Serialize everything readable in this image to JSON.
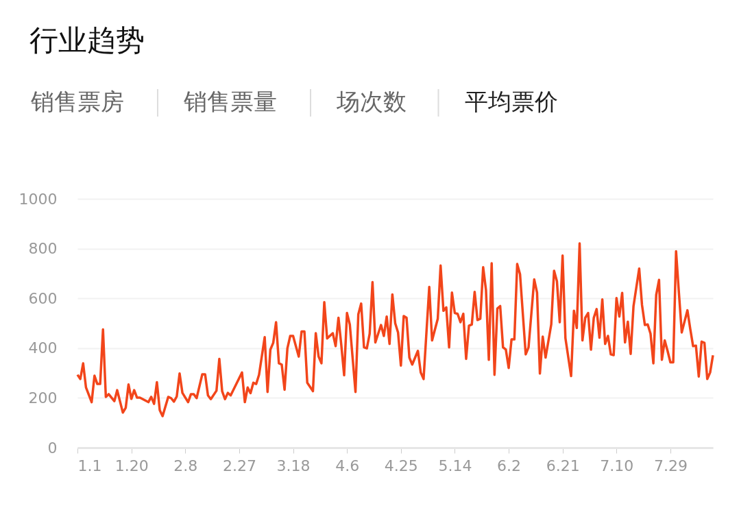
{
  "chart_data": {
    "type": "line",
    "title": "行业趋势",
    "annotations": [
      "销售票房",
      "销售票量",
      "场次数",
      "平均票价"
    ],
    "x": [
      "--01-01",
      "--01-02",
      "--01-03",
      "--01-04",
      "--01-06",
      "--01-07",
      "--01-08",
      "--01-09",
      "--01-10",
      "--01-11",
      "--01-12",
      "--01-14",
      "--01-15",
      "--01-17",
      "--01-18",
      "--01-19",
      "--01-20",
      "--01-21",
      "--01-22",
      "--01-23",
      "--01-26",
      "--01-27",
      "--01-28",
      "--01-29",
      "--01-30",
      "--01-31",
      "--02-02",
      "--02-03",
      "--02-04",
      "--02-05",
      "--02-06",
      "--02-07",
      "--02-09",
      "--02-10",
      "--02-11",
      "--02-12",
      "--02-14",
      "--02-15",
      "--02-16",
      "--02-17",
      "--02-19",
      "--02-20",
      "--02-21",
      "--02-22",
      "--02-23",
      "--02-24",
      "--02-26",
      "--02-28",
      "--03-01",
      "--03-02",
      "--03-03",
      "--03-04",
      "--03-05",
      "--03-06",
      "--03-08",
      "--03-09",
      "--03-10",
      "--03-11",
      "--03-12",
      "--03-13",
      "--03-14",
      "--03-15",
      "--03-16",
      "--03-17",
      "--03-18",
      "--03-20",
      "--03-21",
      "--03-22",
      "--03-23",
      "--03-25",
      "--03-26",
      "--03-27",
      "--03-28",
      "--03-29",
      "--03-30",
      "--04-01",
      "--04-02",
      "--04-03",
      "--04-04",
      "--04-05",
      "--04-06",
      "--04-07",
      "--04-09",
      "--04-10",
      "--04-11",
      "--04-12",
      "--04-13",
      "--04-14",
      "--04-15",
      "--04-16",
      "--04-18",
      "--04-19",
      "--04-20",
      "--04-21",
      "--04-22",
      "--04-23",
      "--04-24",
      "--04-25",
      "--04-26",
      "--04-27",
      "--04-28",
      "--04-29",
      "--05-01",
      "--05-02",
      "--05-03",
      "--05-05",
      "--05-06",
      "--05-08",
      "--05-09",
      "--05-10",
      "--05-11",
      "--05-12",
      "--05-13",
      "--05-14",
      "--05-15",
      "--05-16",
      "--05-17",
      "--05-18",
      "--05-19",
      "--05-20",
      "--05-21",
      "--05-22",
      "--05-23",
      "--05-24",
      "--05-25",
      "--05-26",
      "--05-27",
      "--05-28",
      "--05-29",
      "--05-30",
      "--05-31",
      "--06-01",
      "--06-02",
      "--06-03",
      "--06-04",
      "--06-05",
      "--06-06",
      "--06-08",
      "--06-09",
      "--06-11",
      "--06-12",
      "--06-13",
      "--06-14",
      "--06-15",
      "--06-17",
      "--06-18",
      "--06-19",
      "--06-20",
      "--06-21",
      "--06-22",
      "--06-24",
      "--06-25",
      "--06-26",
      "--06-27",
      "--06-28",
      "--06-29",
      "--06-30",
      "--07-01",
      "--07-02",
      "--07-03",
      "--07-04",
      "--07-05",
      "--07-06",
      "--07-07",
      "--07-08",
      "--07-09",
      "--07-10",
      "--07-11",
      "--07-12",
      "--07-13",
      "--07-14",
      "--07-15",
      "--07-16",
      "--07-18",
      "--07-19",
      "--07-20",
      "--07-21",
      "--07-22",
      "--07-23",
      "--07-24",
      "--07-25",
      "--07-26",
      "--07-27",
      "--07-28",
      "--07-29",
      "--07-30",
      "--07-31",
      "--08-01",
      "--08-02",
      "--08-04",
      "--08-05",
      "--08-06",
      "--08-07",
      "--08-08",
      "--08-09",
      "--08-10",
      "--08-11",
      "--08-12",
      "--08-13"
    ],
    "series": [
      {
        "color": "#f2451a",
        "values": [
          293,
          276,
          339,
          242,
          183,
          289,
          256,
          256,
          475,
          204,
          215,
          187,
          231,
          141,
          160,
          254,
          196,
          231,
          201,
          201,
          183,
          204,
          176,
          263,
          151,
          127,
          204,
          199,
          185,
          206,
          298,
          220,
          183,
          215,
          215,
          199,
          295,
          295,
          210,
          195,
          229,
          357,
          227,
          195,
          220,
          210,
          256,
          302,
          183,
          242,
          219,
          261,
          256,
          293,
          444,
          224,
          394,
          421,
          504,
          339,
          334,
          233,
          399,
          449,
          449,
          366,
          467,
          467,
          261,
          227,
          460,
          366,
          339,
          585,
          439,
          460,
          408,
          522,
          412,
          291,
          541,
          495,
          224,
          536,
          579,
          403,
          399,
          458,
          665,
          423,
          493,
          449,
          527,
          417,
          616,
          500,
          463,
          330,
          529,
          522,
          362,
          334,
          389,
          302,
          276,
          646,
          431,
          518,
          732,
          550,
          564,
          403,
          623,
          541,
          538,
          504,
          538,
          357,
          490,
          495,
          626,
          513,
          518,
          725,
          633,
          353,
          741,
          293,
          559,
          569,
          403,
          394,
          320,
          435,
          435,
          738,
          697,
          375,
          403,
          676,
          623,
          298,
          446,
          362,
          495,
          711,
          669,
          504,
          772,
          440,
          288,
          550,
          481,
          821,
          431,
          522,
          541,
          394,
          522,
          557,
          442,
          596,
          417,
          449,
          375,
          372,
          601,
          527,
          622,
          423,
          506,
          377,
          569,
          720,
          573,
          493,
          495,
          458,
          339,
          614,
          674,
          353,
          431,
          389,
          343,
          343,
          789,
          623,
          463,
          552,
          477,
          408,
          410,
          286,
          426,
          421,
          276,
          302,
          371
        ]
      }
    ],
    "xlim": [
      "--01-01",
      "--08-13"
    ],
    "xticks": [
      {
        "value": "--01-01",
        "label": "1.1"
      },
      {
        "value": "--01-20",
        "label": "1.20"
      },
      {
        "value": "--02-08",
        "label": "2.8"
      },
      {
        "value": "--02-27",
        "label": "2.27"
      },
      {
        "value": "--03-18",
        "label": "3.18"
      },
      {
        "value": "--04-06",
        "label": "4.6"
      },
      {
        "value": "--04-25",
        "label": "4.25"
      },
      {
        "value": "--05-14",
        "label": "5.14"
      },
      {
        "value": "--06-02",
        "label": "6.2"
      },
      {
        "value": "--06-21",
        "label": "6.21"
      },
      {
        "value": "--07-10",
        "label": "7.10"
      },
      {
        "value": "--07-29",
        "label": "7.29"
      }
    ],
    "ylim": [
      0,
      1000
    ],
    "yticks": [
      0,
      200,
      400,
      600,
      800,
      1000
    ],
    "grid": "y",
    "marker": "none",
    "line_style": "solid"
  }
}
